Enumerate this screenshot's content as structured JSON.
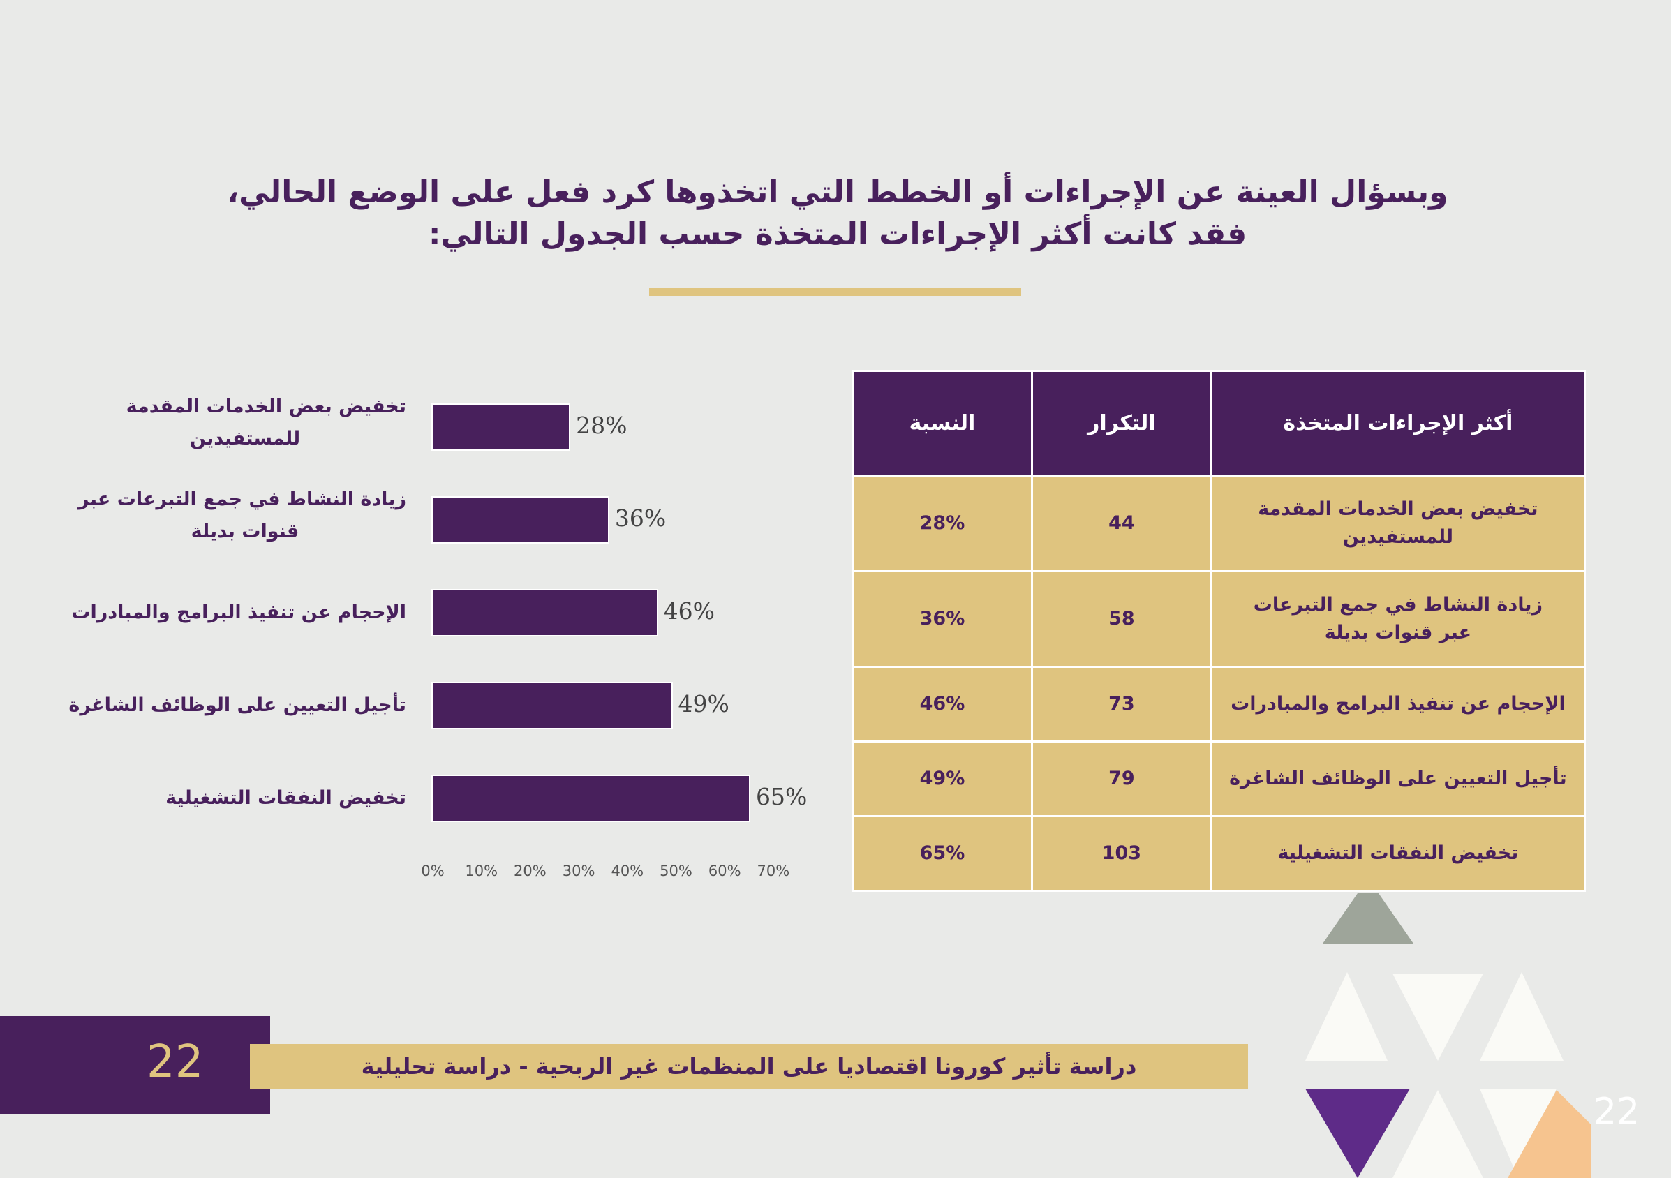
{
  "heading": {
    "line1": "وبسؤال العينة عن الإجراءات أو الخطط التي اتخذوها كرد فعل على الوضع الحالي،",
    "line2": "فقد كانت أكثر الإجراءات المتخذة حسب الجدول التالي:"
  },
  "chart_data": {
    "type": "bar",
    "orientation": "horizontal",
    "categories": [
      "تخفيض بعض الخدمات المقدمة للمستفيدين",
      "زيادة النشاط في جمع التبرعات عبر قنوات بديلة",
      "الإحجام عن تنفيذ البرامج  والمبادرات",
      "تأجيل التعيين على الوظائف الشاغرة",
      "تخفيض النفقات التشغيلية"
    ],
    "category_lines": [
      [
        "تخفيض بعض الخدمات المقدمة",
        "للمستفيدين"
      ],
      [
        "زيادة النشاط في جمع التبرعات عبر",
        "قنوات بديلة"
      ],
      [
        "الإحجام عن تنفيذ البرامج  والمبادرات"
      ],
      [
        "تأجيل التعيين على الوظائف الشاغرة"
      ],
      [
        "تخفيض النفقات التشغيلية"
      ]
    ],
    "values": [
      28,
      36,
      46,
      49,
      65
    ],
    "value_labels": [
      "28%",
      "36%",
      "46%",
      "49%",
      "65%"
    ],
    "xlim": [
      0,
      70
    ],
    "ticks": [
      "0%",
      "10%",
      "20%",
      "30%",
      "40%",
      "50%",
      "60%",
      "70%"
    ],
    "bar_color": "#48205c"
  },
  "table": {
    "headers": [
      "أكثر الإجراءات المتخذة",
      "التكرار",
      "النسبة"
    ],
    "rows": [
      {
        "action": "تخفيض بعض الخدمات المقدمة للمستفيدين",
        "count": "44",
        "pct": "28%"
      },
      {
        "action": "زيادة النشاط في جمع التبرعات عبر قنوات بديلة",
        "count": "58",
        "pct": "36%"
      },
      {
        "action": "الإحجام عن تنفيذ البرامج والمبادرات",
        "count": "73",
        "pct": "46%"
      },
      {
        "action": "تأجيل التعيين على الوظائف الشاغرة",
        "count": "79",
        "pct": "49%"
      },
      {
        "action": "تخفيض النفقات التشغيلية",
        "count": "103",
        "pct": "65%"
      }
    ]
  },
  "footer": {
    "page_number": "22",
    "title": "دراسة تأثير كورونا اقتصاديا على المنظمات غير الربحية - دراسة تحليلية",
    "corner_number": "22"
  },
  "colors": {
    "purple": "#48205c",
    "gold": "#dfc47f",
    "background": "#e9eae8",
    "sage": "#9ea59a",
    "violet": "#5e2b88",
    "peach": "#f6c48f"
  }
}
